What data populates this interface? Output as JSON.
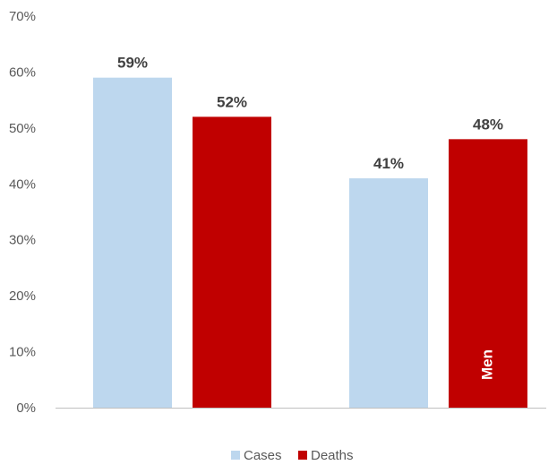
{
  "chart_data": {
    "type": "bar",
    "title": "",
    "xlabel": "",
    "ylabel": "",
    "ylim": [
      0,
      70
    ],
    "y_ticks": [
      0,
      10,
      20,
      30,
      40,
      50,
      60,
      70
    ],
    "y_tick_format": "%",
    "grid": false,
    "legend_position": "bottom",
    "categories": [
      "",
      ""
    ],
    "series": [
      {
        "name": "Cases",
        "color": "#BDD7EE",
        "values": [
          59,
          41
        ],
        "labels": [
          "59%",
          "41%"
        ]
      },
      {
        "name": "Deaths",
        "color": "#C00000",
        "values": [
          52,
          48
        ],
        "labels": [
          "52%",
          "48%"
        ]
      }
    ],
    "annotations": [
      {
        "text": "Men",
        "category_index": 1,
        "series_index": 1,
        "orientation": "vertical"
      }
    ]
  }
}
